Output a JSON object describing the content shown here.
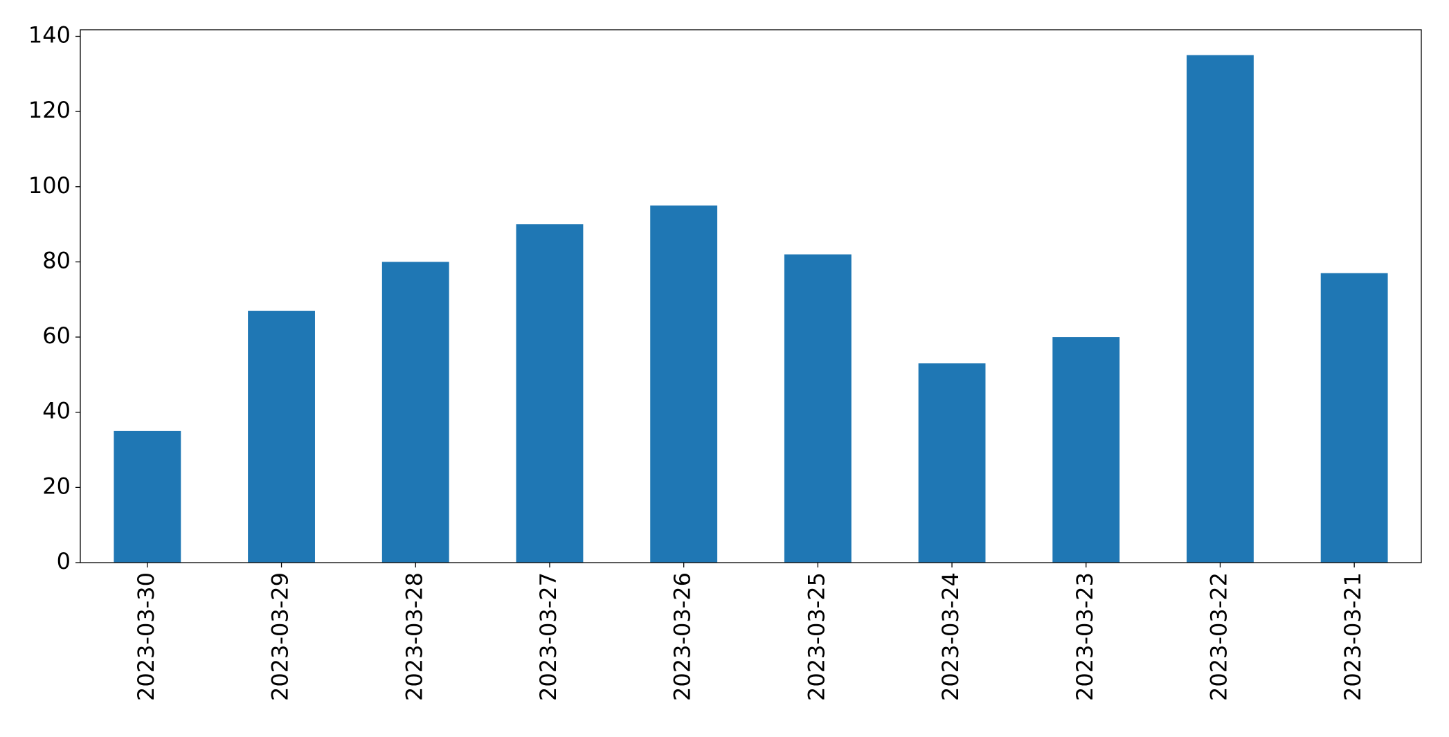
{
  "chart_data": {
    "type": "bar",
    "categories": [
      "2023-03-30",
      "2023-03-29",
      "2023-03-28",
      "2023-03-27",
      "2023-03-26",
      "2023-03-25",
      "2023-03-24",
      "2023-03-23",
      "2023-03-22",
      "2023-03-21"
    ],
    "values": [
      35,
      67,
      80,
      90,
      95,
      82,
      53,
      60,
      135,
      77
    ],
    "color": "#1f77b4",
    "ylim": [
      0,
      141.75
    ],
    "yticks": [
      0,
      20,
      40,
      60,
      80,
      100,
      120,
      140
    ],
    "grid": false
  }
}
